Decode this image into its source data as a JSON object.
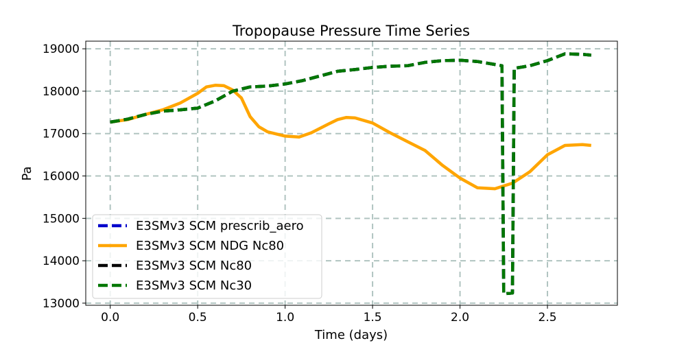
{
  "chart_data": {
    "type": "line",
    "title": "Tropopause Pressure Time Series",
    "xlabel": "Time (days)",
    "ylabel": "Pa",
    "xlim": [
      -0.14,
      2.9
    ],
    "ylim": [
      12950,
      19180
    ],
    "xticks": [
      0.0,
      0.5,
      1.0,
      1.5,
      2.0,
      2.5
    ],
    "xtick_labels": [
      "0.0",
      "0.5",
      "1.0",
      "1.5",
      "2.0",
      "2.5"
    ],
    "yticks": [
      13000,
      14000,
      15000,
      16000,
      17000,
      18000,
      19000
    ],
    "ytick_labels": [
      "13000",
      "14000",
      "15000",
      "16000",
      "17000",
      "18000",
      "19000"
    ],
    "grid": true,
    "legend_position": "lower-left",
    "series": [
      {
        "name": "E3SMv3 SCM prescrib_aero",
        "color": "#0000cc",
        "style": "dashed",
        "x": [
          0.0,
          0.1,
          0.2,
          0.3,
          0.4,
          0.5,
          0.6,
          0.7,
          0.8,
          0.9,
          1.0,
          1.1,
          1.2,
          1.3,
          1.4,
          1.5,
          1.6,
          1.7,
          1.8,
          1.9,
          2.0,
          2.1,
          2.2,
          2.24,
          2.25,
          2.3,
          2.31,
          2.4,
          2.5,
          2.6,
          2.7,
          2.75
        ],
        "y": [
          17270,
          17340,
          17450,
          17530,
          17560,
          17600,
          17770,
          18000,
          18100,
          18120,
          18170,
          18250,
          18360,
          18470,
          18510,
          18560,
          18590,
          18600,
          18680,
          18720,
          18730,
          18700,
          18630,
          18600,
          13220,
          13240,
          18540,
          18600,
          18720,
          18880,
          18870,
          18850
        ]
      },
      {
        "name": "E3SMv3 SCM NDG Nc80",
        "color": "#ffa500",
        "style": "solid",
        "x": [
          0.0,
          0.1,
          0.2,
          0.3,
          0.4,
          0.5,
          0.55,
          0.6,
          0.65,
          0.7,
          0.75,
          0.8,
          0.85,
          0.9,
          1.0,
          1.08,
          1.15,
          1.25,
          1.3,
          1.35,
          1.4,
          1.5,
          1.6,
          1.7,
          1.8,
          1.9,
          2.0,
          2.1,
          2.2,
          2.3,
          2.4,
          2.5,
          2.6,
          2.7,
          2.75
        ],
        "y": [
          17270,
          17330,
          17450,
          17560,
          17720,
          17950,
          18100,
          18140,
          18130,
          18030,
          17840,
          17400,
          17160,
          17040,
          16940,
          16920,
          17020,
          17230,
          17330,
          17380,
          17370,
          17250,
          17020,
          16810,
          16600,
          16250,
          15950,
          15720,
          15700,
          15830,
          16100,
          16500,
          16720,
          16740,
          16720
        ]
      },
      {
        "name": "E3SMv3 SCM Nc80",
        "color": "#000000",
        "style": "dashed",
        "x": [
          0.0,
          0.1,
          0.2,
          0.3,
          0.4,
          0.5,
          0.6,
          0.7,
          0.8,
          0.9,
          1.0,
          1.1,
          1.2,
          1.3,
          1.4,
          1.5,
          1.6,
          1.7,
          1.8,
          1.9,
          2.0,
          2.1,
          2.2,
          2.24,
          2.25,
          2.3,
          2.31,
          2.4,
          2.5,
          2.6,
          2.7,
          2.75
        ],
        "y": [
          17270,
          17340,
          17450,
          17530,
          17560,
          17600,
          17770,
          18000,
          18100,
          18120,
          18170,
          18250,
          18360,
          18470,
          18510,
          18560,
          18590,
          18600,
          18680,
          18720,
          18730,
          18700,
          18630,
          18600,
          13220,
          13240,
          18540,
          18600,
          18720,
          18880,
          18870,
          18850
        ]
      },
      {
        "name": "E3SMv3 SCM Nc30",
        "color": "#007700",
        "style": "dashed",
        "x": [
          0.0,
          0.1,
          0.2,
          0.3,
          0.4,
          0.5,
          0.6,
          0.7,
          0.8,
          0.9,
          1.0,
          1.1,
          1.2,
          1.3,
          1.4,
          1.5,
          1.6,
          1.7,
          1.8,
          1.9,
          2.0,
          2.1,
          2.2,
          2.24,
          2.25,
          2.3,
          2.31,
          2.4,
          2.5,
          2.6,
          2.7,
          2.75
        ],
        "y": [
          17270,
          17340,
          17450,
          17530,
          17560,
          17600,
          17770,
          18000,
          18100,
          18120,
          18170,
          18250,
          18360,
          18470,
          18510,
          18560,
          18590,
          18600,
          18680,
          18720,
          18730,
          18700,
          18630,
          18600,
          13220,
          13240,
          18540,
          18600,
          18720,
          18880,
          18870,
          18850
        ]
      }
    ]
  }
}
